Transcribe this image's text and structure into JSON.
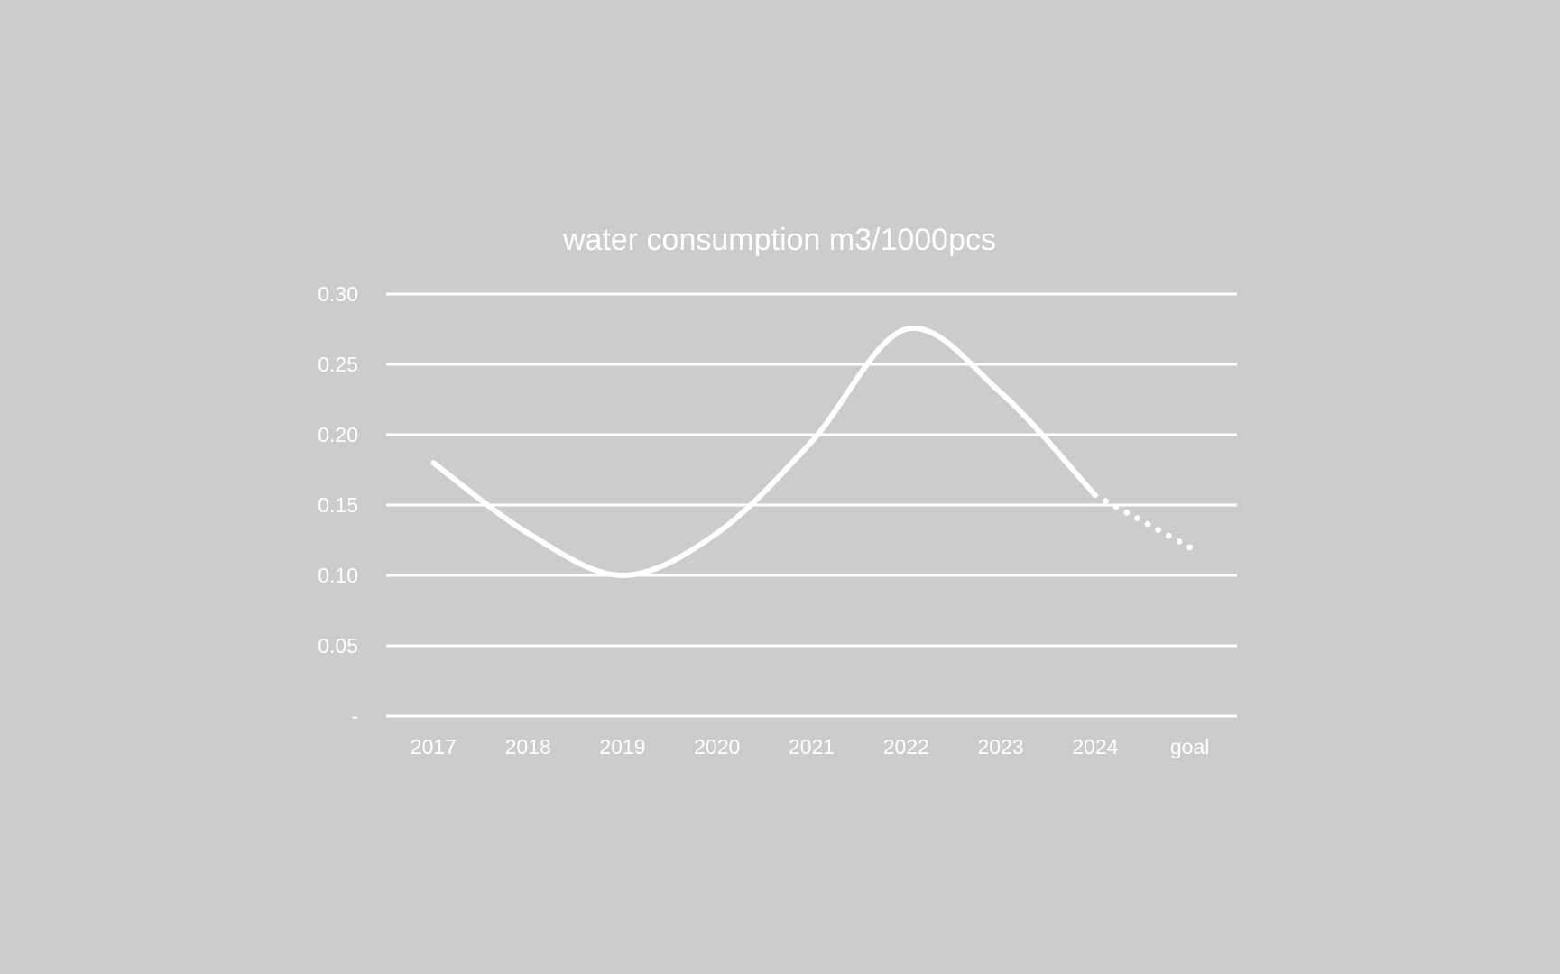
{
  "chart_data": {
    "type": "line",
    "title": "water consumption  m3/1000pcs",
    "categories": [
      "2017",
      "2018",
      "2019",
      "2020",
      "2021",
      "2022",
      "2023",
      "2024",
      "goal"
    ],
    "series": [
      {
        "values": [
          0.18,
          0.13,
          0.1,
          0.13,
          0.195,
          0.275,
          0.23,
          0.157,
          0.12
        ]
      }
    ],
    "projection": {
      "from_category": "2024",
      "to_category": "goal",
      "style": "dotted"
    },
    "ylim": [
      0,
      0.3
    ],
    "yticks": [
      0,
      0.05,
      0.1,
      0.15,
      0.2,
      0.25,
      0.3
    ],
    "ytick_labels": [
      "-",
      "0.05",
      "0.10",
      "0.15",
      "0.20",
      "0.25",
      "0.30"
    ],
    "line_style": "smooth",
    "grid": true,
    "legend": "none",
    "colors": {
      "background": "#cccccc",
      "line": "#ffffff",
      "grid": "#ffffff",
      "text": "#ffffff"
    }
  }
}
